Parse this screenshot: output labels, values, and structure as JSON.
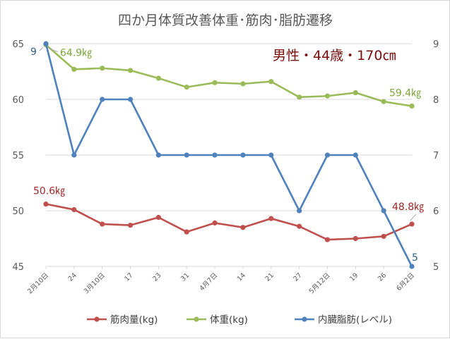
{
  "chart_data": {
    "type": "line",
    "title": "四か月体質改善体重･筋肉･脂肪遷移",
    "annotation": "男性・44歳・170㎝",
    "categories": [
      "2月10日",
      "24",
      "3月10日",
      "17",
      "23",
      "31",
      "4月7日",
      "14",
      "21",
      "27",
      "5月12日",
      "19",
      "26",
      "6月2日"
    ],
    "y_left": {
      "ylim": [
        45,
        65
      ],
      "ticks": [
        "45",
        "50",
        "55",
        "60",
        "65"
      ]
    },
    "y_right": {
      "ylim": [
        5,
        9
      ],
      "ticks": [
        "5",
        "6",
        "7",
        "8",
        "9"
      ]
    },
    "grid": true,
    "legend_position": "bottom",
    "series": [
      {
        "name": "筋肉量(kg)",
        "axis": "left",
        "color": "#c0504d",
        "values": [
          50.6,
          50.1,
          48.8,
          48.7,
          49.4,
          48.1,
          48.9,
          48.5,
          49.3,
          48.6,
          47.4,
          47.5,
          47.7,
          48.8
        ],
        "labels": [
          {
            "index": 0,
            "text": "50.6㎏"
          },
          {
            "index": 13,
            "text": "48.8㎏"
          }
        ]
      },
      {
        "name": "体重(kg)",
        "axis": "left",
        "color": "#9bbb59",
        "values": [
          64.9,
          62.7,
          62.8,
          62.6,
          61.9,
          61.1,
          61.5,
          61.4,
          61.6,
          60.2,
          60.3,
          60.6,
          59.8,
          59.4
        ],
        "labels": [
          {
            "index": 0,
            "text": "64.9㎏"
          },
          {
            "index": 13,
            "text": "59.4㎏"
          }
        ]
      },
      {
        "name": "内臓脂肪(レベル)",
        "axis": "right",
        "color": "#4f81bd",
        "values": [
          9,
          7,
          8,
          8,
          7,
          7,
          7,
          7,
          7,
          6,
          7,
          7,
          6,
          5
        ],
        "labels": [
          {
            "index": 0,
            "text": "9"
          },
          {
            "index": 13,
            "text": "5"
          }
        ]
      }
    ]
  }
}
